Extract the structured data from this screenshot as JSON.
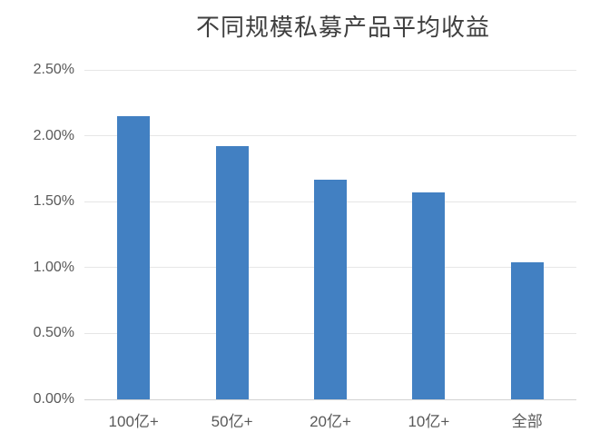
{
  "chart_data": {
    "type": "bar",
    "title": "不同规模私募产品平均收益",
    "categories": [
      "100亿+",
      "50亿+",
      "20亿+",
      "10亿+",
      "全部"
    ],
    "values": [
      2.15,
      1.92,
      1.67,
      1.57,
      1.04
    ],
    "value_unit": "%",
    "ylim": [
      0,
      2.5
    ],
    "ytick_step": 0.5,
    "ytick_labels": [
      "0.00%",
      "0.50%",
      "1.00%",
      "1.50%",
      "2.00%",
      "2.50%"
    ],
    "grid": true,
    "legend_position": "none",
    "colors": {
      "bar": "#4280C2",
      "gridline": "#E6E6E6",
      "axis_line": "#D2D2D2",
      "tick_label": "#595959",
      "title": "#3F3F3F"
    }
  }
}
